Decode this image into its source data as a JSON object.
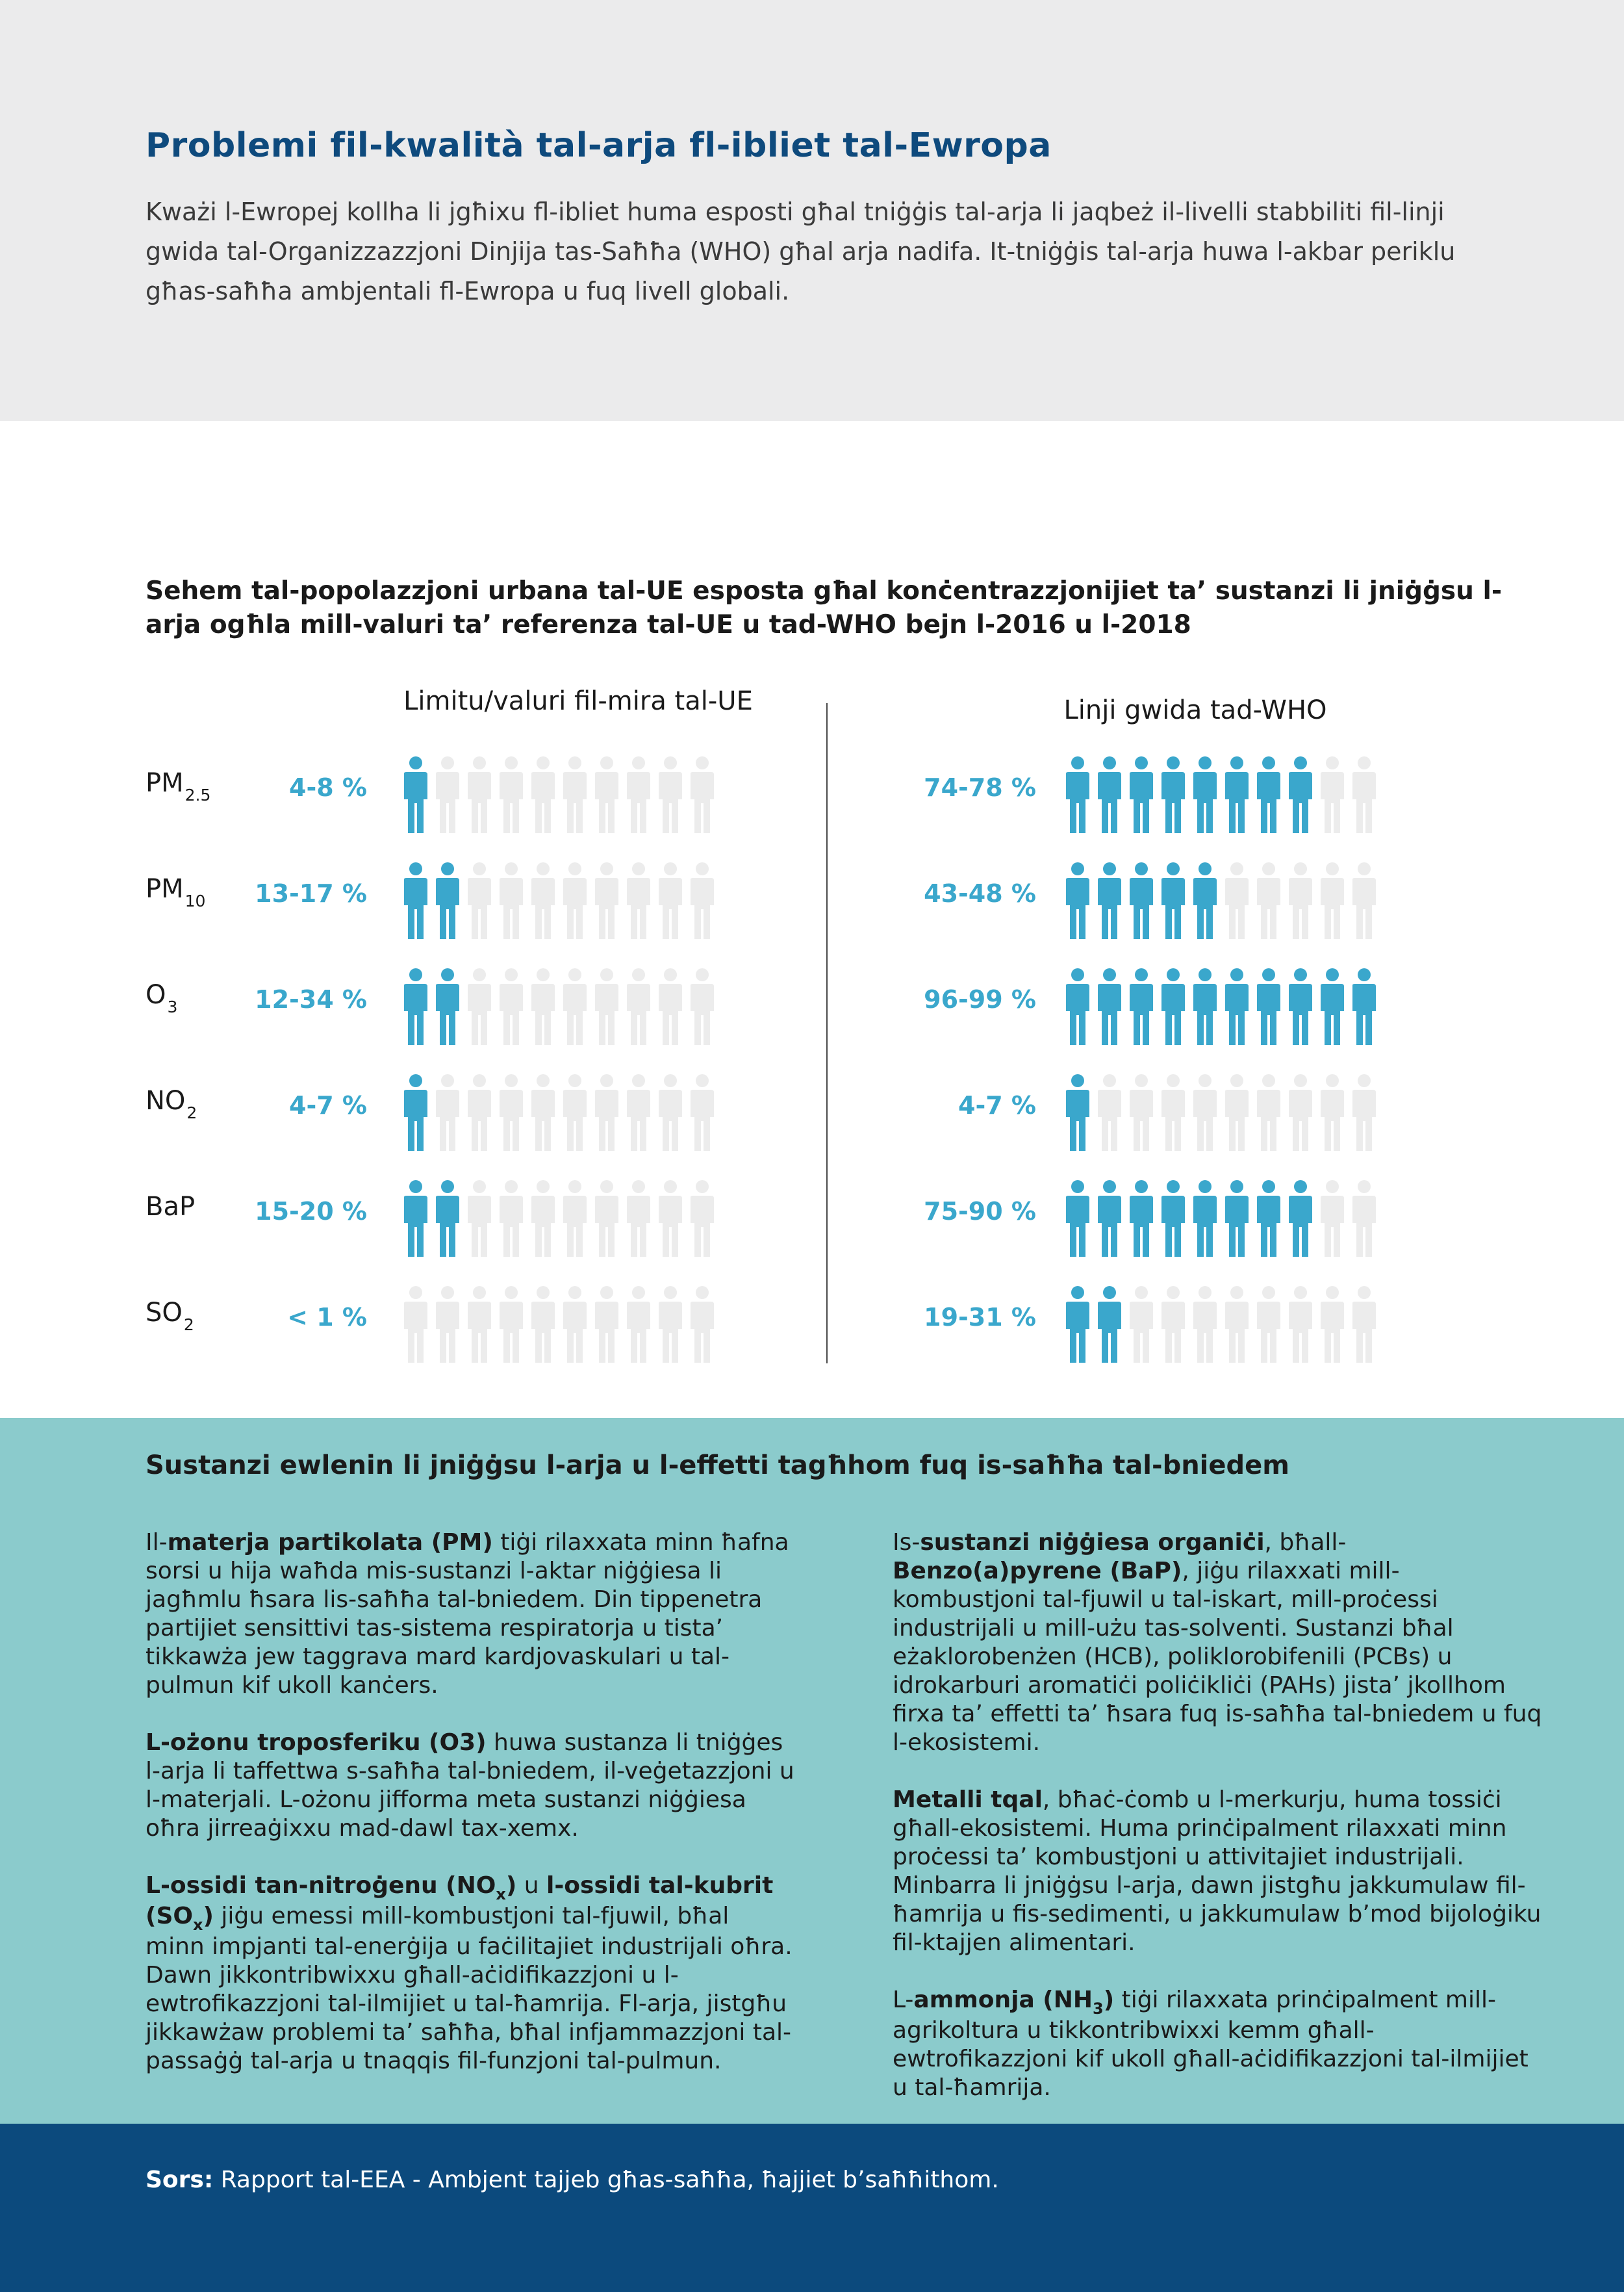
{
  "header": {
    "title": "Problemi fil-kwalità tal-arja fl-ibliet tal-Ewropa",
    "intro": "Kważi l-Ewropej kollha li jgħixu fl-ibliet huma esposti għal tniġġis tal-arja li jaqbeż il-livelli stabbiliti fil-linji gwida tal-Organizzazzjoni Dinjija tas-Saħħa (WHO) għal arja nadifa. It-tniġġis tal-arja huwa l-akbar periklu għas-saħħa ambjentali fl-Ewropa u fuq livell globali."
  },
  "chart": {
    "title": "Sehem tal-popolazzjoni urbana tal-UE esposta għal konċentrazzjonijiet ta’ sustanzi li jniġġsu l-arja ogħla mill-valuri ta’ referenza tal-UE u tad-WHO bejn l-2016 u l-2018",
    "col_eu": "Limitu/valuri fil-mira tal-UE",
    "col_who": "Linji gwida tad-WHO"
  },
  "chart_data": {
    "type": "pictogram",
    "icons_per_row": 10,
    "filled_color": "#3aa7cc",
    "empty_color": "#ececec",
    "pollutants": [
      {
        "base": "PM",
        "sub": "2.5",
        "eu_label": "4-8 %",
        "eu_filled": 1,
        "who_label": "74-78 %",
        "who_filled": 8
      },
      {
        "base": "PM",
        "sub": "10",
        "eu_label": "13-17 %",
        "eu_filled": 2,
        "who_label": "43-48 %",
        "who_filled": 5
      },
      {
        "base": "O",
        "sub": "3",
        "eu_label": "12-34 %",
        "eu_filled": 2,
        "who_label": "96-99 %",
        "who_filled": 10
      },
      {
        "base": "NO",
        "sub": "2",
        "eu_label": "4-7 %",
        "eu_filled": 1,
        "who_label": "4-7 %",
        "who_filled": 1
      },
      {
        "base": "BaP",
        "sub": "",
        "eu_label": "15-20 %",
        "eu_filled": 2,
        "who_label": "75-90 %",
        "who_filled": 8
      },
      {
        "base": "SO",
        "sub": "2",
        "eu_label": "< 1 %",
        "eu_filled": 0,
        "who_label": "19-31 %",
        "who_filled": 2
      }
    ]
  },
  "effects": {
    "title": "Sustanzi ewlenin li jniġġsu l-arja u l-effetti tagħhom fuq is-saħħa tal-bniedem",
    "pm": {
      "pre": "Il-",
      "bold": "materja partikolata (PM)",
      "post": " tiġi rilaxxata minn ħafna sorsi u hija waħda mis-sustanzi l-aktar niġġiesa li jagħmlu ħsara lis-saħħa tal-bniedem. Din tippenetra partijiet sensittivi tas-sistema respiratorja u tista’ tikkawża jew taggrava mard kardjovaskulari u tal-pulmun kif ukoll kanċers."
    },
    "ozone": {
      "bold": "L-ożonu troposferiku (O3)",
      "post": " huwa sustanza li tniġġes l-arja li taffettwa s-saħħa tal-bniedem, il-veġetazzjoni u l-materjali. L-ożonu jifforma meta sustanzi niġġiesa oħra jirreaġixxu mad-dawl tax-xemx."
    },
    "nox": {
      "bold1": "L-ossidi tan-nitroġenu (NO",
      "sub1": "x",
      "bold1_end": ")",
      "mid": " u ",
      "bold2": "l-ossidi tal-kubrit (SO",
      "sub2": "x",
      "bold2_end": ")",
      "post": " jiġu emessi mill-kombustjoni tal-fjuwil, bħal minn impjanti tal-enerġija u faċilitajiet industrijali oħra. Dawn jikkontribwixxu għall-aċidifikazzjoni u l-ewtrofikazzjoni tal-ilmijiet u tal-ħamrija. Fl-arja, jistgħu jikkawżaw problemi ta’ saħħa, bħal infjammazzjoni tal-passaġġ tal-arja u tnaqqis fil-funzjoni tal-pulmun."
    },
    "organic": {
      "pre": "Is-",
      "bold1": "sustanzi niġġiesa organiċi",
      "mid": ", bħall-",
      "bold2": "Benzo(a)pyrene (BaP)",
      "post": ", jiġu rilaxxati mill-kombustjoni tal-fjuwil u tal-iskart, mill-proċessi industrijali u mill-użu tas-solventi. Sustanzi bħal eżaklorobenżen (HCB), poliklorobifenili (PCBs) u idrokarburi aromatiċi poliċikliċi (PAHs) jista’ jkollhom firxa ta’ effetti ta’ ħsara fuq is-saħħa tal-bniedem u fuq l-ekosistemi."
    },
    "metals": {
      "bold": "Metalli tqal",
      "post": ", bħaċ-ċomb u l-merkurju, huma tossiċi għall-ekosistemi. Huma prinċipalment rilaxxati minn proċessi ta’ kombustjoni u attivitajiet industrijali. Minbarra li jniġġsu l-arja, dawn jistgħu jakkumulaw fil-ħamrija u fis-sedimenti, u jakkumulaw b’mod bijoloġiku fil-ktajjen alimentari."
    },
    "ammonia": {
      "pre": "L-",
      "bold": "ammonja (NH",
      "sub": "3",
      "bold_end": ")",
      "post": " tiġi rilaxxata prinċipalment mill-agrikoltura u tikkontribwixxi kemm għall-ewtrofikazzjoni kif ukoll għall-aċidifikazzjoni tal-ilmijiet u tal-ħamrija."
    }
  },
  "footer": {
    "source_label": "Sors:",
    "source_text": " Rapport tal-EEA - Ambjent tajjeb għas-saħħa, ħajjiet b’saħħithom."
  }
}
